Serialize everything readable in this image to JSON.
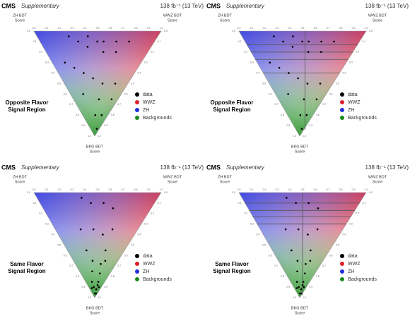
{
  "chart_data": [
    {
      "type": "ternary",
      "cms": "CMS",
      "supplementary": "Supplementary",
      "lumi": "138 fb⁻¹ (13 TeV)",
      "corner_labels": {
        "zh": [
          "ZH BDT",
          "Score"
        ],
        "wwz": [
          "WWZ BDT",
          "Score"
        ],
        "bkg": [
          "BKG BDT",
          "Score"
        ]
      },
      "region_label": [
        "Opposite Flavor",
        "Signal Region"
      ],
      "series": [
        {
          "name": "data",
          "color": "#000000"
        },
        {
          "name": "WWZ",
          "color": "#e0202a"
        },
        {
          "name": "ZH",
          "color": "#2030e0"
        },
        {
          "name": "Backgrounds",
          "color": "#1a8a1a"
        }
      ],
      "ticks": [
        {
          "value": 0,
          "label": "0.0"
        },
        0.1,
        0.2,
        0.3,
        0.4,
        0.5,
        0.6,
        0.7,
        0.8,
        0.9,
        {
          "value": 1,
          "label": "1.0"
        }
      ],
      "points": [
        [
          0.7,
          0.25
        ],
        [
          0.6,
          0.3
        ],
        [
          0.55,
          0.4
        ],
        [
          0.5,
          0.35
        ],
        [
          0.45,
          0.45
        ],
        [
          0.4,
          0.5
        ],
        [
          0.35,
          0.45
        ],
        [
          0.3,
          0.6
        ],
        [
          0.25,
          0.55
        ],
        [
          0.2,
          0.7
        ],
        [
          0.6,
          0.1
        ],
        [
          0.5,
          0.15
        ],
        [
          0.4,
          0.2
        ],
        [
          0.3,
          0.25
        ],
        [
          0.2,
          0.3
        ],
        [
          0.15,
          0.2
        ],
        [
          0.1,
          0.4
        ],
        [
          0.05,
          0.3
        ],
        [
          0.05,
          0.15
        ],
        [
          0.02,
          0.05
        ],
        [
          0.1,
          0.1
        ],
        [
          0.3,
          0.1
        ]
      ]
    },
    {
      "type": "ternary",
      "cms": "CMS",
      "supplementary": "Supplementary",
      "lumi": "138 fb⁻¹ (13 TeV)",
      "corner_labels": {
        "zh": [
          "ZH BDT",
          "Score"
        ],
        "wwz": [
          "WWZ BDT",
          "Score"
        ],
        "bkg": [
          "BKG BDT",
          "Score"
        ]
      },
      "region_label": [
        "Opposite Flavor",
        "Signal Region"
      ],
      "series": [
        {
          "name": "data",
          "color": "#000000"
        },
        {
          "name": "WWZ",
          "color": "#e0202a"
        },
        {
          "name": "ZH",
          "color": "#2030e0"
        },
        {
          "name": "Backgrounds",
          "color": "#1a8a1a"
        }
      ],
      "ticks": [
        {
          "value": 0,
          "label": "0.0"
        },
        0.1,
        0.2,
        0.3,
        0.4,
        0.5,
        0.6,
        0.7,
        0.8,
        0.9,
        {
          "value": 1,
          "label": "1.0"
        }
      ],
      "bin_edges": {
        "x": [
          0.52
        ],
        "y": [
          0.13,
          0.2,
          0.27,
          0.4
        ]
      },
      "points": [
        [
          0.7,
          0.25
        ],
        [
          0.6,
          0.3
        ],
        [
          0.55,
          0.4
        ],
        [
          0.5,
          0.35
        ],
        [
          0.45,
          0.45
        ],
        [
          0.4,
          0.5
        ],
        [
          0.35,
          0.45
        ],
        [
          0.3,
          0.6
        ],
        [
          0.25,
          0.55
        ],
        [
          0.2,
          0.7
        ],
        [
          0.6,
          0.1
        ],
        [
          0.5,
          0.15
        ],
        [
          0.4,
          0.2
        ],
        [
          0.3,
          0.25
        ],
        [
          0.2,
          0.3
        ],
        [
          0.15,
          0.2
        ],
        [
          0.1,
          0.4
        ],
        [
          0.05,
          0.3
        ],
        [
          0.05,
          0.15
        ],
        [
          0.02,
          0.05
        ],
        [
          0.1,
          0.1
        ],
        [
          0.3,
          0.1
        ]
      ]
    },
    {
      "type": "ternary",
      "cms": "CMS",
      "supplementary": "Supplementary",
      "lumi": "138 fb⁻¹ (13 TeV)",
      "corner_labels": {
        "zh": [
          "ZH BDT",
          "Score"
        ],
        "wwz": [
          "WWZ BDT",
          "Score"
        ],
        "bkg": [
          "BKG BDT",
          "Score"
        ]
      },
      "region_label": [
        "Same Flavor",
        "Signal Region"
      ],
      "series": [
        {
          "name": "data",
          "color": "#000000"
        },
        {
          "name": "WWZ",
          "color": "#e0202a"
        },
        {
          "name": "ZH",
          "color": "#2030e0"
        },
        {
          "name": "Backgrounds",
          "color": "#1a8a1a"
        }
      ],
      "ticks": [
        {
          "value": 0,
          "label": "0.0"
        },
        0.1,
        0.2,
        0.3,
        0.4,
        0.5,
        0.6,
        0.7,
        0.8,
        0.9,
        {
          "value": 1,
          "label": "1.0"
        }
      ],
      "points": [
        [
          0.6,
          0.35
        ],
        [
          0.5,
          0.4
        ],
        [
          0.4,
          0.5
        ],
        [
          0.3,
          0.55
        ],
        [
          0.45,
          0.2
        ],
        [
          0.35,
          0.3
        ],
        [
          0.25,
          0.35
        ],
        [
          0.2,
          0.45
        ],
        [
          0.15,
          0.3
        ],
        [
          0.1,
          0.25
        ],
        [
          0.08,
          0.15
        ],
        [
          0.05,
          0.1
        ],
        [
          0.03,
          0.05
        ],
        [
          0.02,
          0.02
        ],
        [
          0.06,
          0.04
        ],
        [
          0.1,
          0.05
        ],
        [
          0.04,
          0.08
        ],
        [
          0.2,
          0.15
        ],
        [
          0.15,
          0.1
        ],
        [
          0.01,
          0.03
        ],
        [
          0.12,
          0.2
        ],
        [
          0.3,
          0.15
        ],
        [
          0.07,
          0.02
        ],
        [
          0.02,
          0.08
        ]
      ]
    },
    {
      "type": "ternary",
      "cms": "CMS",
      "supplementary": "Supplementary",
      "lumi": "138 fb⁻¹ (13 TeV)",
      "corner_labels": {
        "zh": [
          "ZH BDT",
          "Score"
        ],
        "wwz": [
          "WWZ BDT",
          "Score"
        ],
        "bkg": [
          "BKG BDT",
          "Score"
        ]
      },
      "region_label": [
        "Same Flavor",
        "Signal Region"
      ],
      "series": [
        {
          "name": "data",
          "color": "#000000"
        },
        {
          "name": "WWZ",
          "color": "#e0202a"
        },
        {
          "name": "ZH",
          "color": "#2030e0"
        },
        {
          "name": "Backgrounds",
          "color": "#1a8a1a"
        }
      ],
      "ticks": [
        {
          "value": 0,
          "label": "0.0"
        },
        0.1,
        0.2,
        0.3,
        0.4,
        0.5,
        0.6,
        0.7,
        0.8,
        0.9,
        {
          "value": 1,
          "label": "1.0"
        }
      ],
      "bin_edges": {
        "x": [
          0.5
        ],
        "y": [
          0.1,
          0.17,
          0.23,
          0.3
        ]
      },
      "points": [
        [
          0.6,
          0.35
        ],
        [
          0.5,
          0.4
        ],
        [
          0.4,
          0.5
        ],
        [
          0.3,
          0.55
        ],
        [
          0.45,
          0.2
        ],
        [
          0.35,
          0.3
        ],
        [
          0.25,
          0.35
        ],
        [
          0.2,
          0.45
        ],
        [
          0.15,
          0.3
        ],
        [
          0.1,
          0.25
        ],
        [
          0.08,
          0.15
        ],
        [
          0.05,
          0.1
        ],
        [
          0.03,
          0.05
        ],
        [
          0.02,
          0.02
        ],
        [
          0.06,
          0.04
        ],
        [
          0.1,
          0.05
        ],
        [
          0.04,
          0.08
        ],
        [
          0.2,
          0.15
        ],
        [
          0.15,
          0.1
        ],
        [
          0.01,
          0.03
        ],
        [
          0.12,
          0.2
        ],
        [
          0.3,
          0.15
        ],
        [
          0.07,
          0.02
        ],
        [
          0.02,
          0.08
        ]
      ]
    }
  ]
}
